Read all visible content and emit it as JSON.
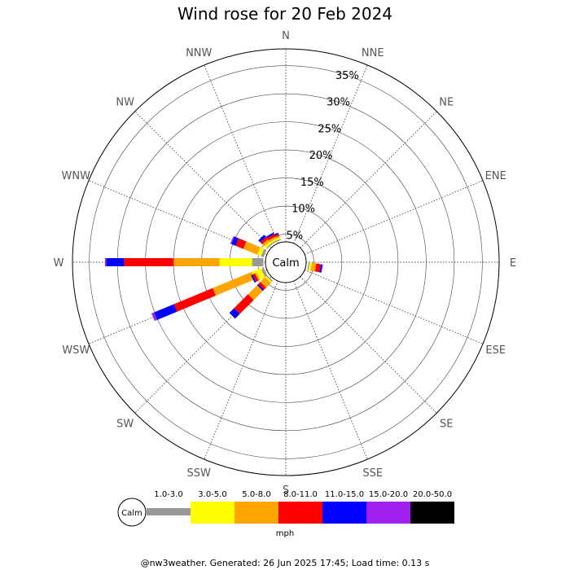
{
  "chart_data": {
    "type": "windrose",
    "title": "Wind rose for 20 Feb 2024",
    "calm_label": "Calm",
    "unit": "mph",
    "directions": [
      "N",
      "NNE",
      "NE",
      "ENE",
      "E",
      "ESE",
      "SE",
      "SSE",
      "S",
      "SSW",
      "SW",
      "WSW",
      "W",
      "WNW",
      "NW",
      "NNW"
    ],
    "r_ticks": [
      5,
      10,
      15,
      20,
      25,
      30,
      35
    ],
    "r_tick_labels": [
      "5%",
      "10%",
      "15%",
      "20%",
      "25%",
      "30%",
      "35%"
    ],
    "r_max": 38,
    "calm_radius_pct": 4,
    "speed_bins": [
      {
        "label": "1.0-3.0",
        "color": "#999999"
      },
      {
        "label": "3.0-5.0",
        "color": "#ffff00"
      },
      {
        "label": "5.0-8.0",
        "color": "#ffa500"
      },
      {
        "label": "8.0-11.0",
        "color": "#ff0000"
      },
      {
        "label": "11.0-15.0",
        "color": "#0000ff"
      },
      {
        "label": "15.0-20.0",
        "color": "#a020f0"
      },
      {
        "label": "20.0-50.0",
        "color": "#000000"
      }
    ],
    "series": [
      {
        "direction": "N",
        "values": [
          0,
          0,
          0,
          0,
          0,
          0,
          0
        ]
      },
      {
        "direction": "NNE",
        "values": [
          0,
          0,
          0,
          0,
          0,
          0,
          0
        ]
      },
      {
        "direction": "NE",
        "values": [
          0,
          0,
          0,
          0,
          0,
          0,
          0
        ]
      },
      {
        "direction": "ENE",
        "values": [
          0,
          0,
          0,
          0,
          0,
          0,
          0
        ]
      },
      {
        "direction": "E",
        "values": [
          0,
          0,
          0,
          0,
          0,
          0,
          0
        ]
      },
      {
        "direction": "ESE",
        "values": [
          0,
          0,
          0,
          0,
          0,
          0,
          0
        ]
      },
      {
        "direction": "SE",
        "values": [
          0,
          0,
          0,
          0,
          0,
          0,
          0
        ]
      },
      {
        "direction": "SSE",
        "values": [
          0,
          0,
          0,
          0,
          0,
          0,
          0
        ]
      },
      {
        "direction": "S",
        "values": [
          0,
          0,
          0,
          0,
          0,
          0,
          0
        ]
      },
      {
        "direction": "SSW",
        "values": [
          0,
          0,
          0,
          0,
          0,
          0,
          0
        ]
      },
      {
        "direction": "SW",
        "values": [
          0.3,
          0.5,
          4.0,
          3.5,
          1.2,
          0,
          0
        ]
      },
      {
        "direction": "WSW",
        "values": [
          0.3,
          2.0,
          7.5,
          7.5,
          3.8,
          0.5,
          0
        ]
      },
      {
        "direction": "W",
        "values": [
          2.0,
          5.8,
          8.2,
          8.8,
          3.2,
          0.2,
          0
        ]
      },
      {
        "direction": "WNW",
        "values": [
          0.5,
          0.7,
          2.7,
          1.5,
          0.8,
          0.2,
          0
        ]
      },
      {
        "direction": "NW",
        "values": [
          0.2,
          0.5,
          0.5,
          0.5,
          0.5,
          0,
          0
        ]
      },
      {
        "direction": "NNW",
        "values": [
          0.2,
          0.3,
          0.3,
          0.3,
          0.3,
          0,
          0
        ]
      }
    ],
    "extra_series": [
      {
        "direction_deg": 330,
        "values": [
          0.2,
          0.3,
          0.4,
          0.5,
          0.3,
          0,
          0
        ]
      },
      {
        "direction_deg": 243,
        "values": [
          0.5,
          1.0,
          0.3,
          0.5,
          0.3,
          0,
          0
        ]
      },
      {
        "direction_deg": 225,
        "values": [
          0.2,
          0.3,
          1.2,
          0.5,
          0.3,
          0,
          0
        ]
      },
      {
        "direction_deg": 120,
        "values": [
          0,
          0,
          0,
          0,
          0,
          0,
          0
        ]
      },
      {
        "direction_deg": 100,
        "values": [
          0.2,
          0.4,
          0.8,
          0.8,
          0.3,
          0.1,
          0
        ]
      }
    ]
  },
  "footer": {
    "text": "@nw3weather. Generated: 26 Jun 2025 17:45; Load time: 0.13 s"
  }
}
